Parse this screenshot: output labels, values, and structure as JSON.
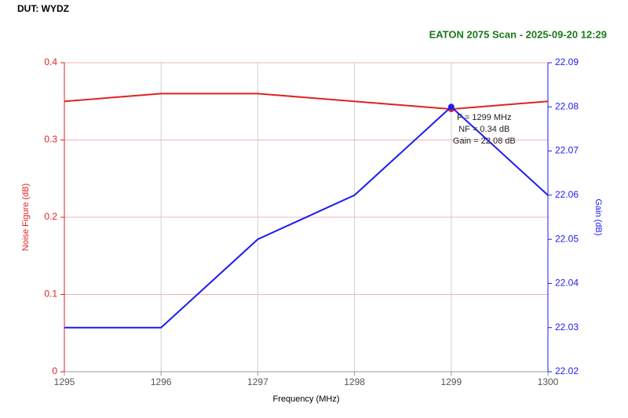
{
  "chart_data": {
    "type": "line",
    "header": "DUT: WYDZ",
    "title": "EATON 2075 Scan - 2025-09-20 12:29",
    "xlabel": "Frequency (MHz)",
    "ylabel": "Noise Figure (dB)",
    "y2label": "Gain (dB)",
    "x": [
      1295,
      1296,
      1297,
      1298,
      1299,
      1300
    ],
    "series": [
      {
        "name": "Noise Figure",
        "color": "#e02222",
        "values": [
          0.35,
          0.36,
          0.36,
          0.35,
          0.34,
          0.35
        ]
      },
      {
        "name": "Gain",
        "color": "#1c1cf0",
        "axis": "y2",
        "values": [
          22.03,
          22.03,
          22.05,
          22.06,
          22.08,
          22.06
        ]
      }
    ],
    "xlim": [
      1295,
      1300
    ],
    "xticks": [
      1295,
      1296,
      1297,
      1298,
      1299,
      1300
    ],
    "ylim": [
      0,
      0.4
    ],
    "yticks": [
      0,
      0.1,
      0.2,
      0.3,
      0.4
    ],
    "y2lim": [
      22.02,
      22.09
    ],
    "y2ticks": [
      22.02,
      22.03,
      22.04,
      22.05,
      22.06,
      22.07,
      22.08,
      22.09
    ],
    "grid": true,
    "marker_x": 1299,
    "annotations": [
      "F = 1299 MHz",
      "NF = 0.34 dB",
      "Gain = 22.08 dB"
    ]
  }
}
